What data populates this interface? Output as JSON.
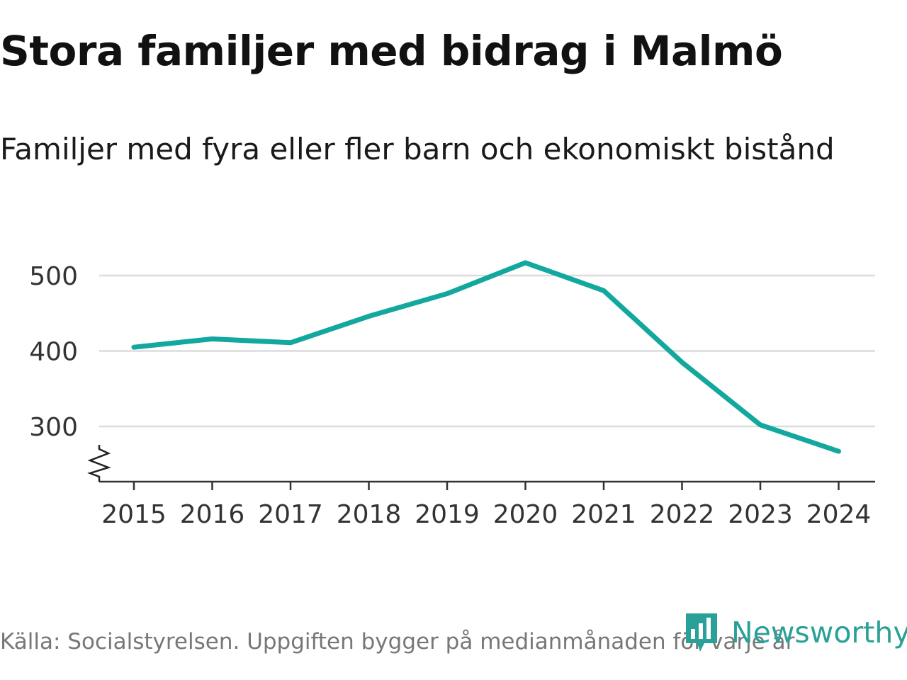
{
  "title": "Stora familjer med bidrag i Malmö",
  "subtitle": "Familjer med fyra eller fler barn och ekonomiskt bistånd",
  "source": "Källa: Socialstyrelsen. Uppgiften bygger på medianmånaden för varje år",
  "brand": {
    "name": "Newsworthy",
    "color": "#2aa198"
  },
  "chart_data": {
    "type": "line",
    "title": "Familjer med fyra eller fler barn och ekonomiskt bistånd",
    "xlabel": "",
    "ylabel": "",
    "x": [
      "2015",
      "2016",
      "2017",
      "2018",
      "2019",
      "2020",
      "2021",
      "2022",
      "2023",
      "2024"
    ],
    "series": [
      {
        "name": "Familjer",
        "color": "#13a89e",
        "values": [
          405,
          416,
          411,
          446,
          476,
          517,
          480,
          385,
          302,
          267
        ]
      }
    ],
    "yticks": [
      300,
      400,
      500
    ],
    "ylim": [
      228,
      540
    ],
    "grid": true,
    "axis_break": true
  }
}
